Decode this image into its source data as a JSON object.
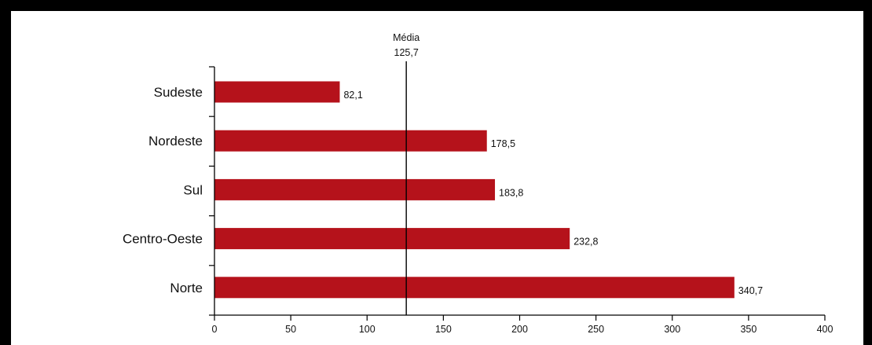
{
  "chart_data": {
    "type": "bar",
    "orientation": "horizontal",
    "categories": [
      "Sudeste",
      "Nordeste",
      "Sul",
      "Centro-Oeste",
      "Norte"
    ],
    "values": [
      82.1,
      178.5,
      183.8,
      232.8,
      340.7
    ],
    "value_labels": [
      "82,1",
      "178,5",
      "183,8",
      "232,8",
      "340,7"
    ],
    "bar_color": "#b5121b",
    "xlim": [
      0,
      400
    ],
    "xticks": [
      0,
      50,
      100,
      150,
      200,
      250,
      300,
      350,
      400
    ],
    "xtick_labels": [
      "0",
      "50",
      "100",
      "150",
      "200",
      "250",
      "300",
      "350",
      "400"
    ],
    "reference_line": {
      "value": 125.7,
      "label": "Média",
      "value_label": "125,7"
    },
    "grid": false,
    "legend": "none"
  }
}
